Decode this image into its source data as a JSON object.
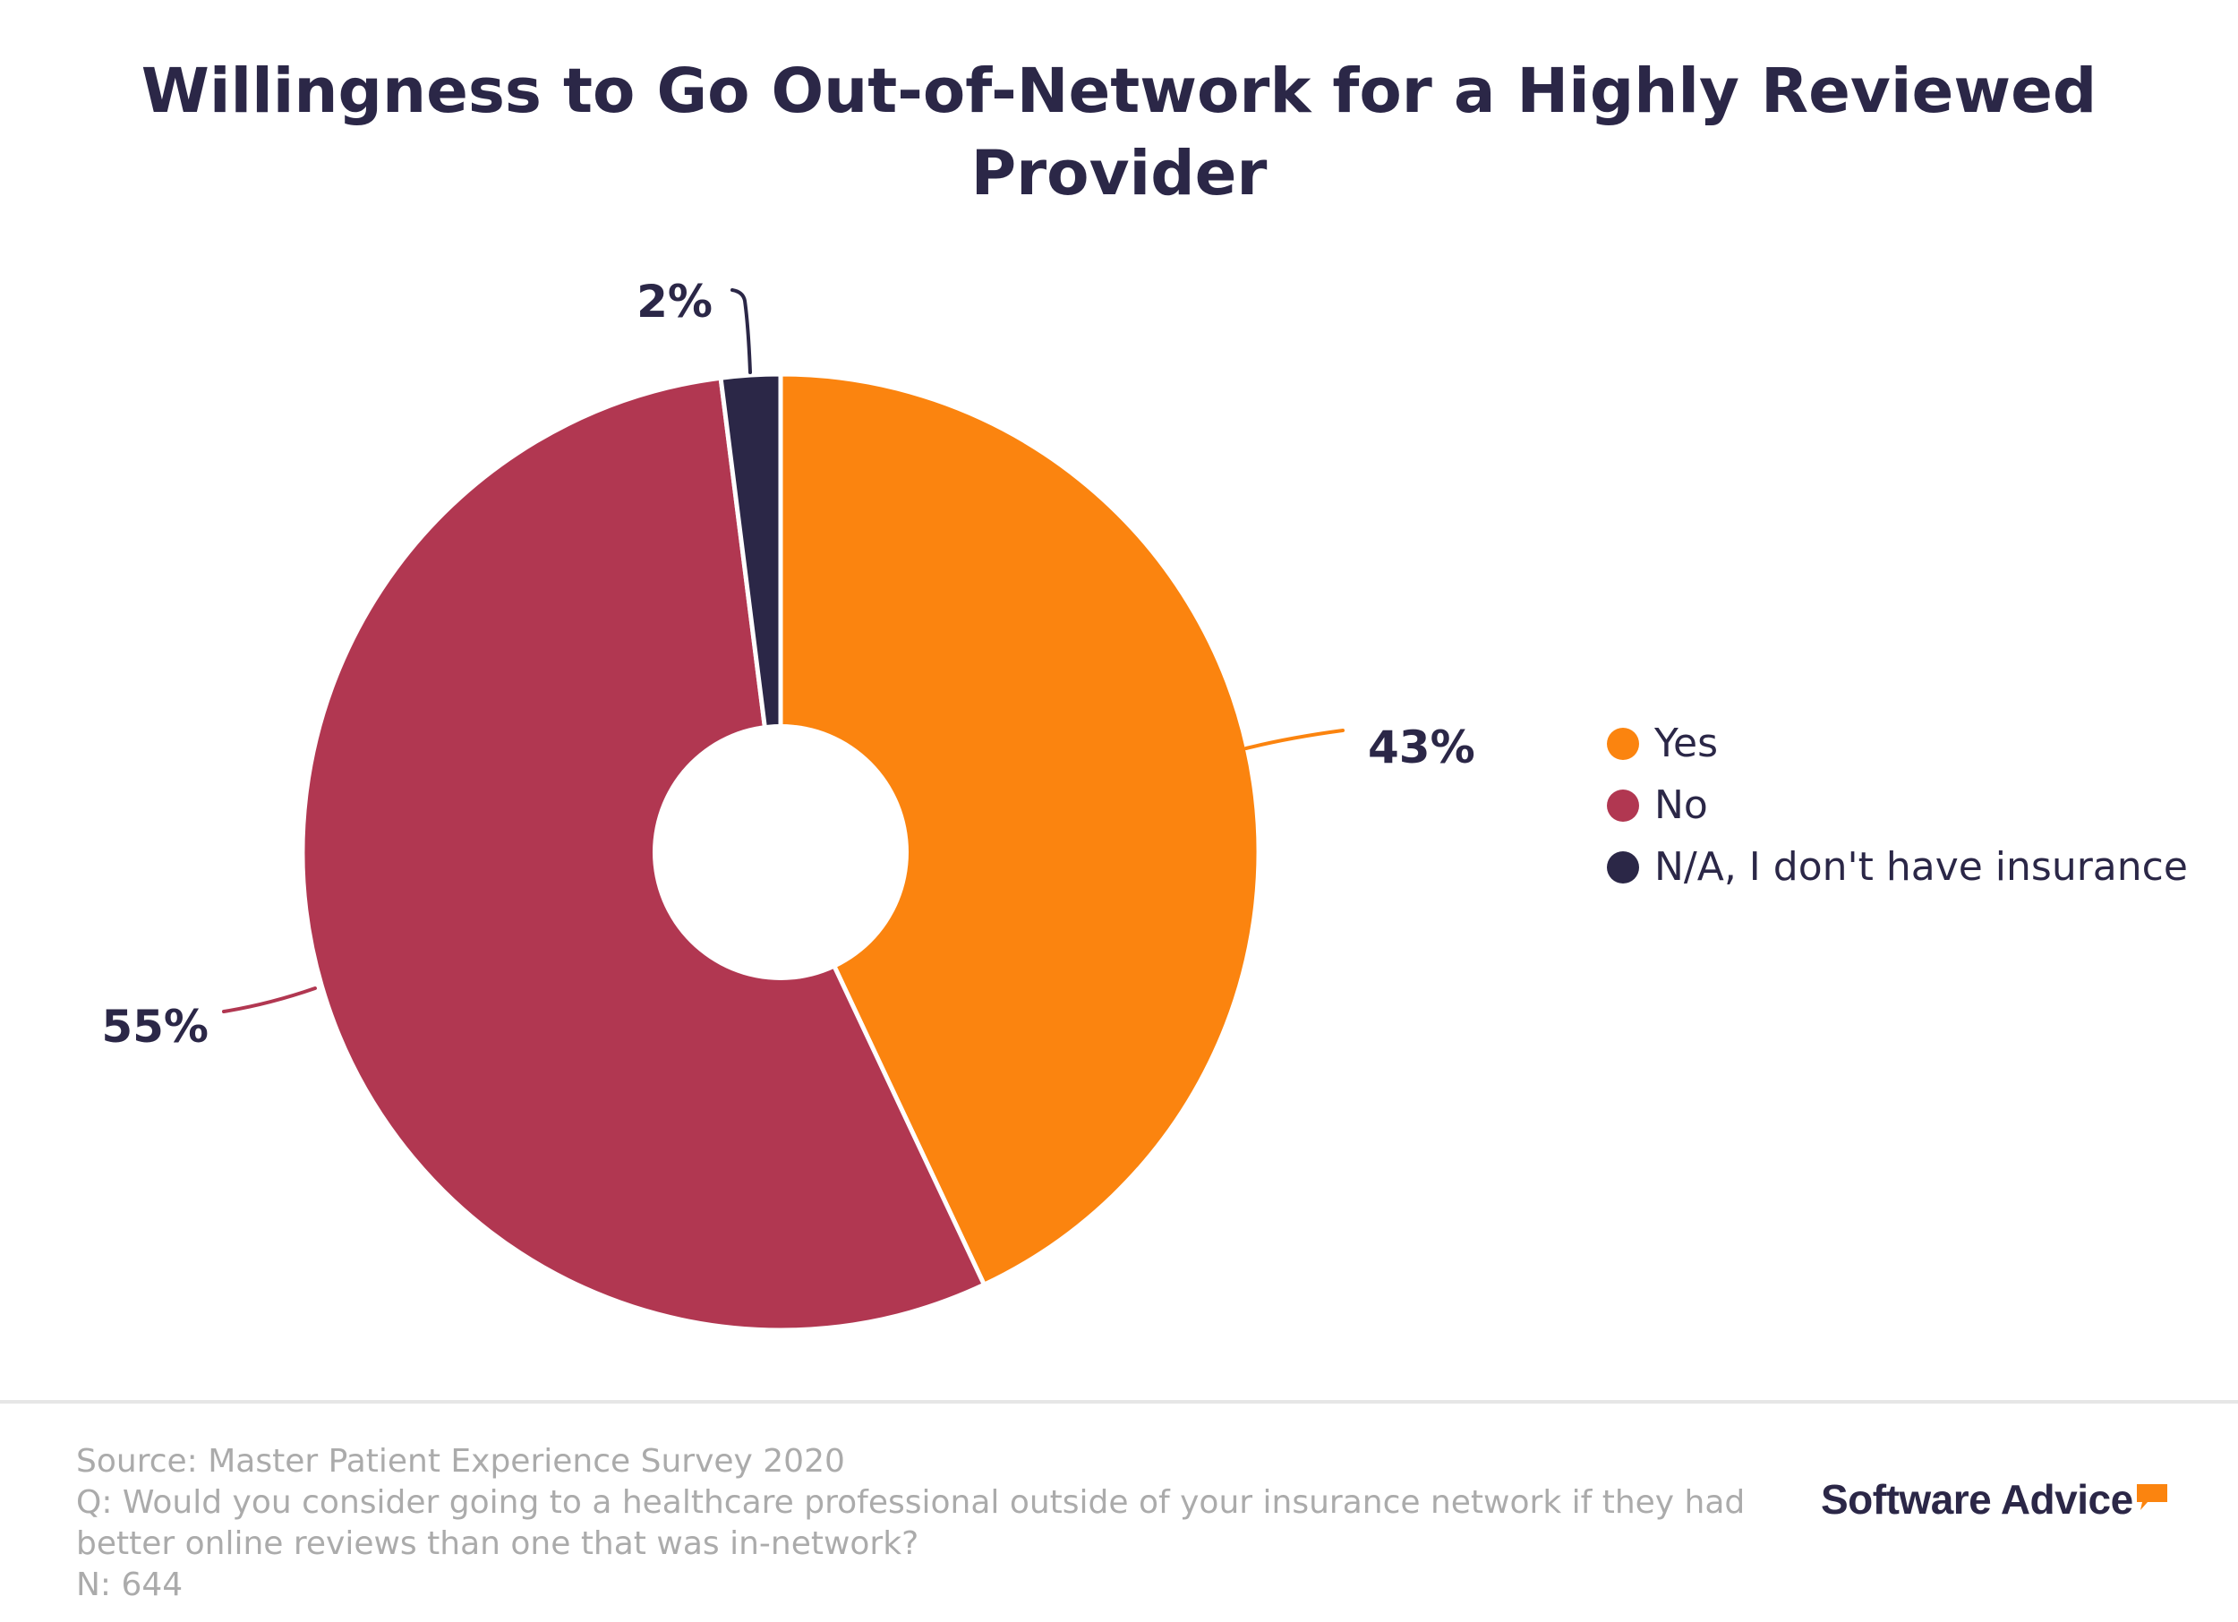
{
  "chart_data": {
    "type": "pie",
    "title": "Willingness to Go Out-of-Network for a Highly Reviewed Provider",
    "categories": [
      "Yes",
      "No",
      "N/A, I don't have insurance"
    ],
    "values": [
      43,
      55,
      2
    ],
    "labels": [
      "43%",
      "55%",
      "2%"
    ],
    "colors": [
      "#fb840f",
      "#b13751",
      "#2b2747"
    ],
    "donut": true,
    "legend_position": "right"
  },
  "footer": {
    "source": "Source: Master Patient Experience Survey 2020",
    "question_line1": "Q: Would you consider going to a healthcare professional outside of your insurance network if they had",
    "question_line2": "better online reviews than one that was in-network?",
    "n": "N: 644"
  },
  "brand": {
    "name": "Software Advice",
    "accent": "#fb840f"
  }
}
